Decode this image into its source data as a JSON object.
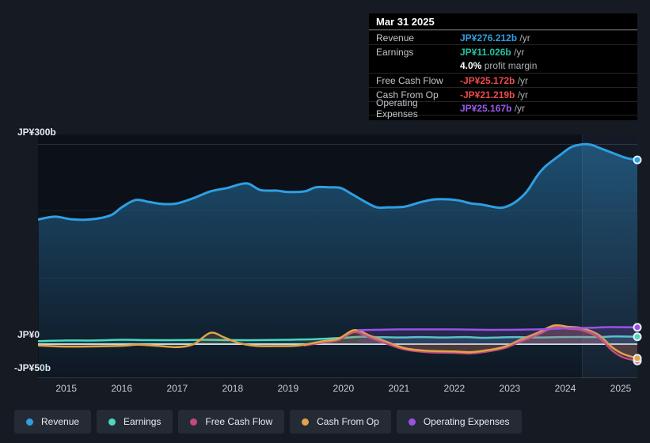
{
  "tooltip": {
    "date": "Mar 31 2025",
    "rows": [
      {
        "label": "Revenue",
        "value": "JP¥276.212b",
        "suffix": " /yr",
        "color": "#2e9fe2"
      },
      {
        "label": "Earnings",
        "value": "JP¥11.026b",
        "suffix": " /yr",
        "color": "#25c2a4"
      },
      {
        "label": "Free Cash Flow",
        "value": "-JP¥25.172b",
        "suffix": " /yr",
        "color": "#ef4b4b"
      },
      {
        "label": "Cash From Op",
        "value": "-JP¥21.219b",
        "suffix": " /yr",
        "color": "#ef4b4b"
      },
      {
        "label": "Operating Expenses",
        "value": "JP¥25.167b",
        "suffix": " /yr",
        "color": "#9b59ec"
      }
    ],
    "profit_margin": {
      "value": "4.0%",
      "label": " profit margin"
    }
  },
  "axis": {
    "y_top": "JP¥300b",
    "y_zero": "JP¥0",
    "y_neg": "-JP¥50b"
  },
  "legend": [
    {
      "label": "Revenue",
      "color": "#2e9fe2"
    },
    {
      "label": "Earnings",
      "color": "#4cd7c1"
    },
    {
      "label": "Free Cash Flow",
      "color": "#c4497c"
    },
    {
      "label": "Cash From Op",
      "color": "#e0a34a"
    },
    {
      "label": "Operating Expenses",
      "color": "#9b51e8"
    }
  ],
  "chart_data": {
    "type": "line",
    "title": "",
    "currency_unit": "JP¥ billions",
    "x_axis": {
      "labels": [
        "2015",
        "2016",
        "2017",
        "2018",
        "2019",
        "2020",
        "2021",
        "2022",
        "2023",
        "2024",
        "2025"
      ],
      "range": [
        2014.49,
        2025.3
      ]
    },
    "y_axis": {
      "tick_labels": [
        "JP¥300b",
        "JP¥0",
        "-JP¥50b"
      ],
      "range": [
        -50,
        300
      ],
      "gridline_values": [
        300,
        200,
        100,
        0,
        -50
      ]
    },
    "highlight_band_years": [
      2024.25,
      2025.3
    ],
    "hover_point": {
      "date": "Mar 31 2025",
      "revenue": 276.212,
      "earnings": 11.026,
      "profit_margin_pct": 4.0,
      "free_cash_flow": -25.172,
      "cash_from_op": -21.219,
      "operating_expenses": 25.167
    },
    "series": [
      {
        "name": "Revenue",
        "color": "#2e9fe2",
        "width": 3,
        "fill": "gradient",
        "points": [
          [
            2014.5,
            187
          ],
          [
            2014.8,
            191
          ],
          [
            2015.1,
            187
          ],
          [
            2015.45,
            187
          ],
          [
            2015.8,
            193
          ],
          [
            2016.0,
            205
          ],
          [
            2016.25,
            216
          ],
          [
            2016.5,
            213
          ],
          [
            2016.75,
            210
          ],
          [
            2017.0,
            211
          ],
          [
            2017.3,
            219
          ],
          [
            2017.6,
            229
          ],
          [
            2017.9,
            234
          ],
          [
            2018.25,
            241
          ],
          [
            2018.5,
            231
          ],
          [
            2018.8,
            230
          ],
          [
            2019.0,
            228
          ],
          [
            2019.3,
            229
          ],
          [
            2019.5,
            235
          ],
          [
            2019.75,
            235
          ],
          [
            2019.95,
            234
          ],
          [
            2020.15,
            225
          ],
          [
            2020.4,
            213
          ],
          [
            2020.6,
            205
          ],
          [
            2020.8,
            205
          ],
          [
            2021.1,
            206
          ],
          [
            2021.4,
            213
          ],
          [
            2021.65,
            217
          ],
          [
            2021.9,
            217
          ],
          [
            2022.1,
            215
          ],
          [
            2022.3,
            211
          ],
          [
            2022.5,
            209
          ],
          [
            2022.75,
            205
          ],
          [
            2022.9,
            205
          ],
          [
            2023.1,
            213
          ],
          [
            2023.3,
            228
          ],
          [
            2023.5,
            253
          ],
          [
            2023.65,
            267
          ],
          [
            2023.9,
            283
          ],
          [
            2024.1,
            295
          ],
          [
            2024.27,
            299
          ],
          [
            2024.45,
            299
          ],
          [
            2024.65,
            293
          ],
          [
            2024.9,
            285
          ],
          [
            2025.1,
            279
          ],
          [
            2025.3,
            276.212
          ]
        ]
      },
      {
        "name": "Earnings",
        "color": "#4cd7c1",
        "width": 2.5,
        "fill": "baseline",
        "points": [
          [
            2014.5,
            4.5
          ],
          [
            2015,
            5.5
          ],
          [
            2015.5,
            5.5
          ],
          [
            2016,
            6.5
          ],
          [
            2016.5,
            6
          ],
          [
            2017,
            6
          ],
          [
            2017.5,
            6.5
          ],
          [
            2018,
            6
          ],
          [
            2018.5,
            6
          ],
          [
            2019,
            6.5
          ],
          [
            2019.5,
            7.5
          ],
          [
            2020,
            9.5
          ],
          [
            2020.3,
            11
          ],
          [
            2020.6,
            10.5
          ],
          [
            2021,
            10
          ],
          [
            2021.4,
            10.5
          ],
          [
            2021.8,
            10
          ],
          [
            2022.2,
            10.5
          ],
          [
            2022.5,
            9.5
          ],
          [
            2022.8,
            10
          ],
          [
            2023.1,
            10.5
          ],
          [
            2023.5,
            10
          ],
          [
            2023.9,
            10.5
          ],
          [
            2024.27,
            10.7
          ],
          [
            2024.6,
            10.5
          ],
          [
            2024.9,
            11.5
          ],
          [
            2025.3,
            11.026
          ]
        ]
      },
      {
        "name": "Free Cash Flow",
        "color": "#c4497c",
        "width": 2.5,
        "fill": "baseline",
        "points": [
          [
            2019.3,
            -2
          ],
          [
            2019.6,
            2
          ],
          [
            2019.9,
            6
          ],
          [
            2020.2,
            18
          ],
          [
            2020.5,
            9
          ],
          [
            2020.8,
            0
          ],
          [
            2021.1,
            -8
          ],
          [
            2021.5,
            -12
          ],
          [
            2022,
            -13
          ],
          [
            2022.3,
            -14
          ],
          [
            2022.6,
            -11
          ],
          [
            2022.9,
            -6
          ],
          [
            2023.2,
            4
          ],
          [
            2023.5,
            14
          ],
          [
            2023.8,
            25
          ],
          [
            2024.05,
            23
          ],
          [
            2024.3,
            21
          ],
          [
            2024.6,
            10
          ],
          [
            2024.85,
            -10
          ],
          [
            2025.05,
            -20
          ],
          [
            2025.3,
            -25.172
          ]
        ]
      },
      {
        "name": "Cash From Op",
        "color": "#e0a34a",
        "width": 2.5,
        "fill": "baseline",
        "points": [
          [
            2014.5,
            -2
          ],
          [
            2014.9,
            -3.5
          ],
          [
            2015.4,
            -3.5
          ],
          [
            2016,
            -2.5
          ],
          [
            2016.3,
            -1
          ],
          [
            2016.7,
            -3
          ],
          [
            2017,
            -4.5
          ],
          [
            2017.3,
            0
          ],
          [
            2017.6,
            17
          ],
          [
            2017.85,
            10
          ],
          [
            2018.1,
            2
          ],
          [
            2018.4,
            -2.5
          ],
          [
            2018.8,
            -3
          ],
          [
            2019.2,
            -2
          ],
          [
            2019.6,
            4
          ],
          [
            2019.9,
            8
          ],
          [
            2020.2,
            21
          ],
          [
            2020.5,
            12
          ],
          [
            2020.8,
            3
          ],
          [
            2021.1,
            -6
          ],
          [
            2021.5,
            -10
          ],
          [
            2022,
            -11
          ],
          [
            2022.3,
            -12
          ],
          [
            2022.6,
            -9
          ],
          [
            2022.9,
            -4
          ],
          [
            2023.2,
            7
          ],
          [
            2023.5,
            17
          ],
          [
            2023.8,
            28
          ],
          [
            2024.05,
            26
          ],
          [
            2024.3,
            24
          ],
          [
            2024.6,
            14
          ],
          [
            2024.85,
            -5
          ],
          [
            2025.05,
            -15
          ],
          [
            2025.3,
            -21.219
          ]
        ]
      },
      {
        "name": "Operating Expenses",
        "color": "#9b51e8",
        "width": 2.5,
        "fill": "baseline",
        "points": [
          [
            2020.27,
            21
          ],
          [
            2020.6,
            21.5
          ],
          [
            2021,
            22
          ],
          [
            2021.5,
            22
          ],
          [
            2022,
            22
          ],
          [
            2022.5,
            21.5
          ],
          [
            2023,
            21.5
          ],
          [
            2023.5,
            22
          ],
          [
            2023.8,
            23
          ],
          [
            2024.1,
            24
          ],
          [
            2024.5,
            24.5
          ],
          [
            2024.8,
            25.5
          ],
          [
            2025.3,
            25.167
          ]
        ]
      }
    ]
  }
}
